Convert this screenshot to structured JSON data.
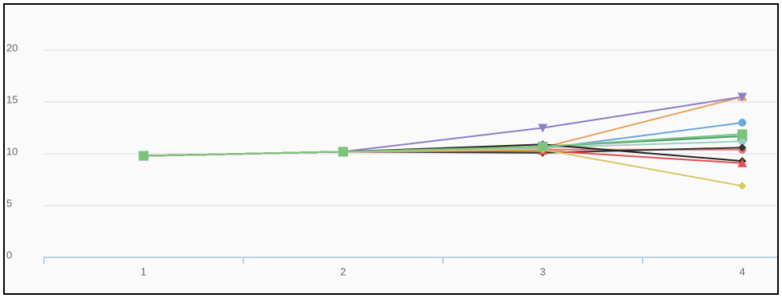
{
  "chart_data": {
    "type": "line",
    "categories": [
      "1",
      "2",
      "3",
      "4"
    ],
    "ylim": [
      0,
      24
    ],
    "yticks": [
      0,
      5,
      10,
      15,
      20
    ],
    "grid": true,
    "series": [
      {
        "color": "#e8a060",
        "marker": "triangle",
        "values": [
          9.8,
          10.2,
          10.6,
          15.5
        ]
      },
      {
        "color": "#8a80c4",
        "marker": "triangle-down",
        "values": [
          9.8,
          10.2,
          12.5,
          15.5
        ]
      },
      {
        "color": "#6aa8dc",
        "marker": "circle",
        "values": [
          9.8,
          10.2,
          10.5,
          13.0
        ]
      },
      {
        "color": "#3f9a6a",
        "marker": "square",
        "values": [
          9.8,
          10.2,
          10.7,
          11.7
        ]
      },
      {
        "color": "#9ccfc0",
        "marker": "circle",
        "values": [
          9.8,
          10.2,
          10.6,
          11.2
        ]
      },
      {
        "color": "#f07070",
        "marker": "circle",
        "values": [
          9.8,
          10.2,
          10.4,
          10.4
        ]
      },
      {
        "color": "#333333",
        "marker": "diamond",
        "values": [
          9.8,
          10.2,
          10.1,
          10.6
        ]
      },
      {
        "color": "#222222",
        "marker": "diamond",
        "values": [
          9.8,
          10.2,
          10.9,
          9.3
        ]
      },
      {
        "color": "#e05050",
        "marker": "triangle",
        "values": [
          9.8,
          10.2,
          10.3,
          9.1
        ]
      },
      {
        "color": "#d8c860",
        "marker": "diamond",
        "values": [
          9.8,
          10.2,
          10.4,
          6.9
        ]
      },
      {
        "color": "#7cc47c",
        "marker": "square",
        "values": [
          9.8,
          10.2,
          10.7,
          11.9
        ]
      }
    ]
  }
}
